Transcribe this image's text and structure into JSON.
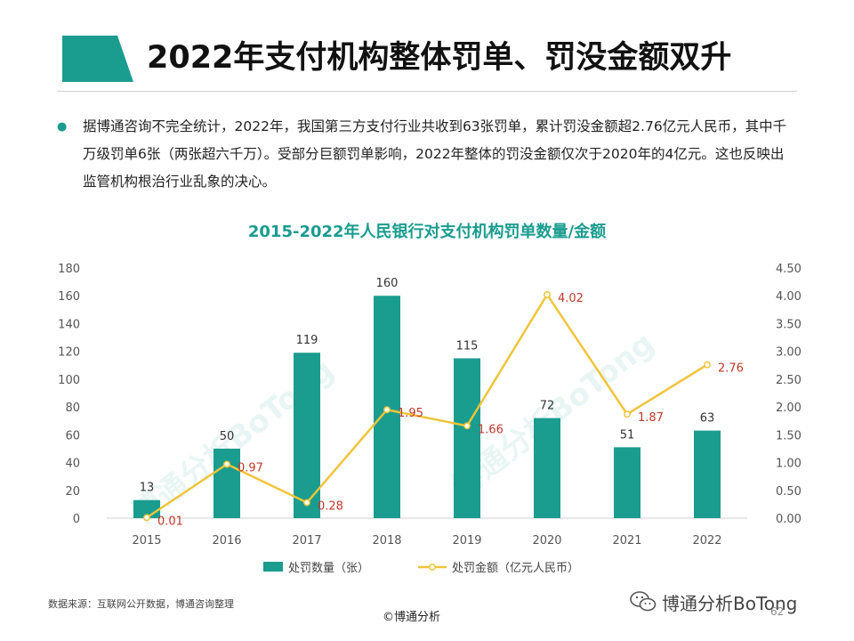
{
  "slide": {
    "title": "2022年支付机构整体罚单、罚没金额双升",
    "bullet": "据博通咨询不完全统计，2022年，我国第三方支付行业共收到63张罚单，累计罚没金额超2.76亿元人民币，其中千万级罚单6张（两张超六千万）。受部分巨额罚单影响，2022年整体的罚没金额仅次于2020年的4亿元。这也反映出监管机构根治行业乱象的决心。",
    "source": "数据来源：互联网公开数据，博通咨询整理",
    "copyright": "©博通分析",
    "wechat": "博通分析BoTong",
    "page_number": "62",
    "watermarks": [
      "博通分析BoTong",
      "博通分析BoTong"
    ]
  },
  "colors": {
    "teal": "#1a9c8f",
    "gold": "#f0c43a",
    "label_red": "#c0392b",
    "axis_text": "#555555"
  },
  "chart_data": {
    "type": "bar",
    "title": "2015-2022年人民银行对支付机构罚单数量/金额",
    "categories": [
      "2015",
      "2016",
      "2017",
      "2018",
      "2019",
      "2020",
      "2021",
      "2022"
    ],
    "series": [
      {
        "name": "处罚数量（张）",
        "type": "bar",
        "axis": "left",
        "values": [
          13,
          50,
          119,
          160,
          115,
          72,
          51,
          63
        ],
        "labels": [
          "13",
          "50",
          "119",
          "160",
          "115",
          "72",
          "51",
          "63"
        ]
      },
      {
        "name": "处罚金额（亿元人民币）",
        "type": "line",
        "axis": "right",
        "values": [
          0.01,
          0.97,
          0.28,
          1.95,
          1.66,
          4.02,
          1.87,
          2.76
        ],
        "labels": [
          "0.01",
          "0.97",
          "0.28",
          "1.95",
          "1.66",
          "4.02",
          "1.87",
          "2.76"
        ]
      }
    ],
    "y_left": {
      "min": 0,
      "max": 180,
      "ticks": [
        0,
        20,
        40,
        60,
        80,
        100,
        120,
        140,
        160,
        180
      ],
      "tick_labels": [
        "0",
        "20",
        "40",
        "60",
        "80",
        "100",
        "120",
        "140",
        "160",
        "180"
      ]
    },
    "y_right": {
      "min": 0,
      "max": 4.5,
      "ticks": [
        0,
        0.5,
        1,
        1.5,
        2,
        2.5,
        3,
        3.5,
        4,
        4.5
      ],
      "tick_labels": [
        "0.00",
        "0.50",
        "1.00",
        "1.50",
        "2.00",
        "2.50",
        "3.00",
        "3.50",
        "4.00",
        "4.50"
      ]
    },
    "grid": false,
    "legend": "bottom"
  }
}
